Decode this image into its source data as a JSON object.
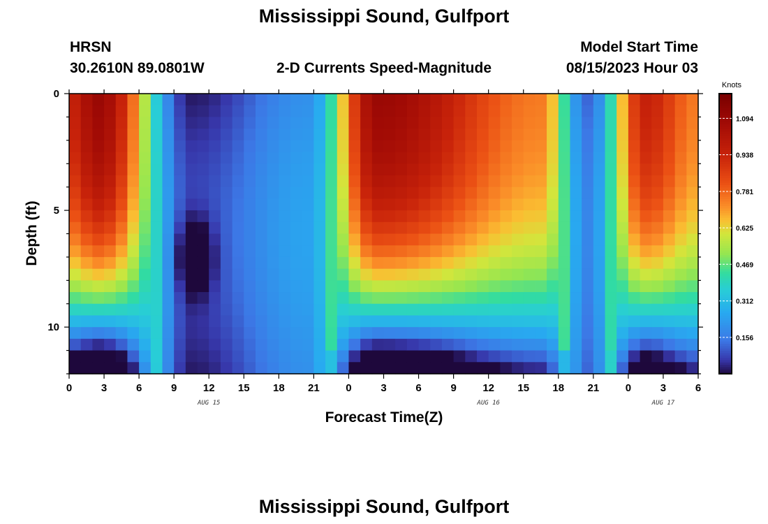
{
  "title": "Mississippi Sound, Gulfport",
  "title_repeat": "Mississippi Sound, Gulfport",
  "station": {
    "id": "HRSN",
    "coords": "30.2610N  89.0801W"
  },
  "subtitle": "2-D Currents Speed-Magnitude",
  "model_start": {
    "label": "Model Start Time",
    "value": "08/15/2023 Hour 03"
  },
  "chart_data": {
    "type": "heatmap",
    "title": "2-D Currents Speed-Magnitude",
    "xlabel": "Forecast Time(Z)",
    "ylabel": "Depth (ft)",
    "x_range_hours": [
      0,
      54
    ],
    "y_range_ft": [
      0,
      12
    ],
    "y_inverted": true,
    "x_tick_hours": [
      0,
      3,
      6,
      9,
      12,
      15,
      18,
      21,
      24,
      27,
      30,
      33,
      36,
      39,
      42,
      45,
      48,
      51,
      54
    ],
    "x_tick_labels": [
      "0",
      "3",
      "6",
      "9",
      "12",
      "15",
      "18",
      "21",
      "0",
      "3",
      "6",
      "9",
      "12",
      "15",
      "18",
      "21",
      "0",
      "3",
      "6"
    ],
    "y_ticks": [
      0,
      5,
      10
    ],
    "y_tick_labels": [
      "0",
      "5",
      "10"
    ],
    "date_labels": [
      {
        "hour": 12,
        "text": "AUG 15"
      },
      {
        "hour": 36,
        "text": "AUG 16"
      },
      {
        "hour": 51,
        "text": "AUG 17"
      }
    ],
    "colorbar": {
      "unit": "Knots",
      "min": 0,
      "max": 1.2,
      "ticks": [
        0.156,
        0.312,
        0.469,
        0.625,
        0.781,
        0.938,
        1.094
      ],
      "tick_labels": [
        "0.156",
        "0.312",
        "0.469",
        "0.625",
        "0.781",
        "0.938",
        "1.094"
      ]
    },
    "grid": false,
    "speed_model_knots": {
      "description_units": "knots",
      "peaks": [
        {
          "hour": 2.5,
          "speed": 1.1
        },
        {
          "hour": 26.5,
          "speed": 1.1
        },
        {
          "hour": 40.5,
          "speed": 0.75
        },
        {
          "hour": 49.5,
          "speed": 0.95
        }
      ],
      "lows": [
        {
          "hour": 10.5,
          "speed": 0.02
        },
        {
          "hour": 20.5,
          "speed": 0.2
        },
        {
          "hour": 44.5,
          "speed": 0.12
        }
      ]
    }
  }
}
